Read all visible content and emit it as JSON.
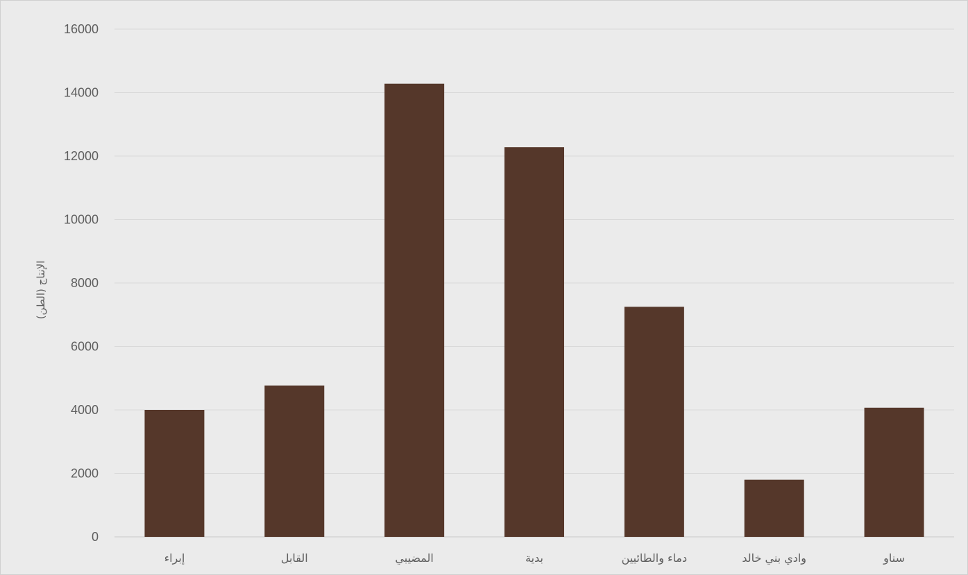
{
  "chart_data": {
    "type": "bar",
    "title": "",
    "xlabel": "",
    "ylabel": "الإنتاج (الطن)",
    "categories": [
      "إبراء",
      "القابل",
      "المضيبي",
      "بدية",
      "دماء والطائيين",
      "وادي بني خالد",
      "سناو"
    ],
    "values": [
      4000,
      4770,
      14280,
      12280,
      7250,
      1800,
      4070
    ],
    "ylim": [
      0,
      16000
    ],
    "yticks": [
      0,
      2000,
      4000,
      6000,
      8000,
      10000,
      12000,
      14000,
      16000
    ],
    "grid": true,
    "legend": "none",
    "colors": {
      "bar": "#55372a",
      "gridline": "#d9d9d9",
      "background": "#ebebeb",
      "text": "#5f5f5f"
    }
  }
}
